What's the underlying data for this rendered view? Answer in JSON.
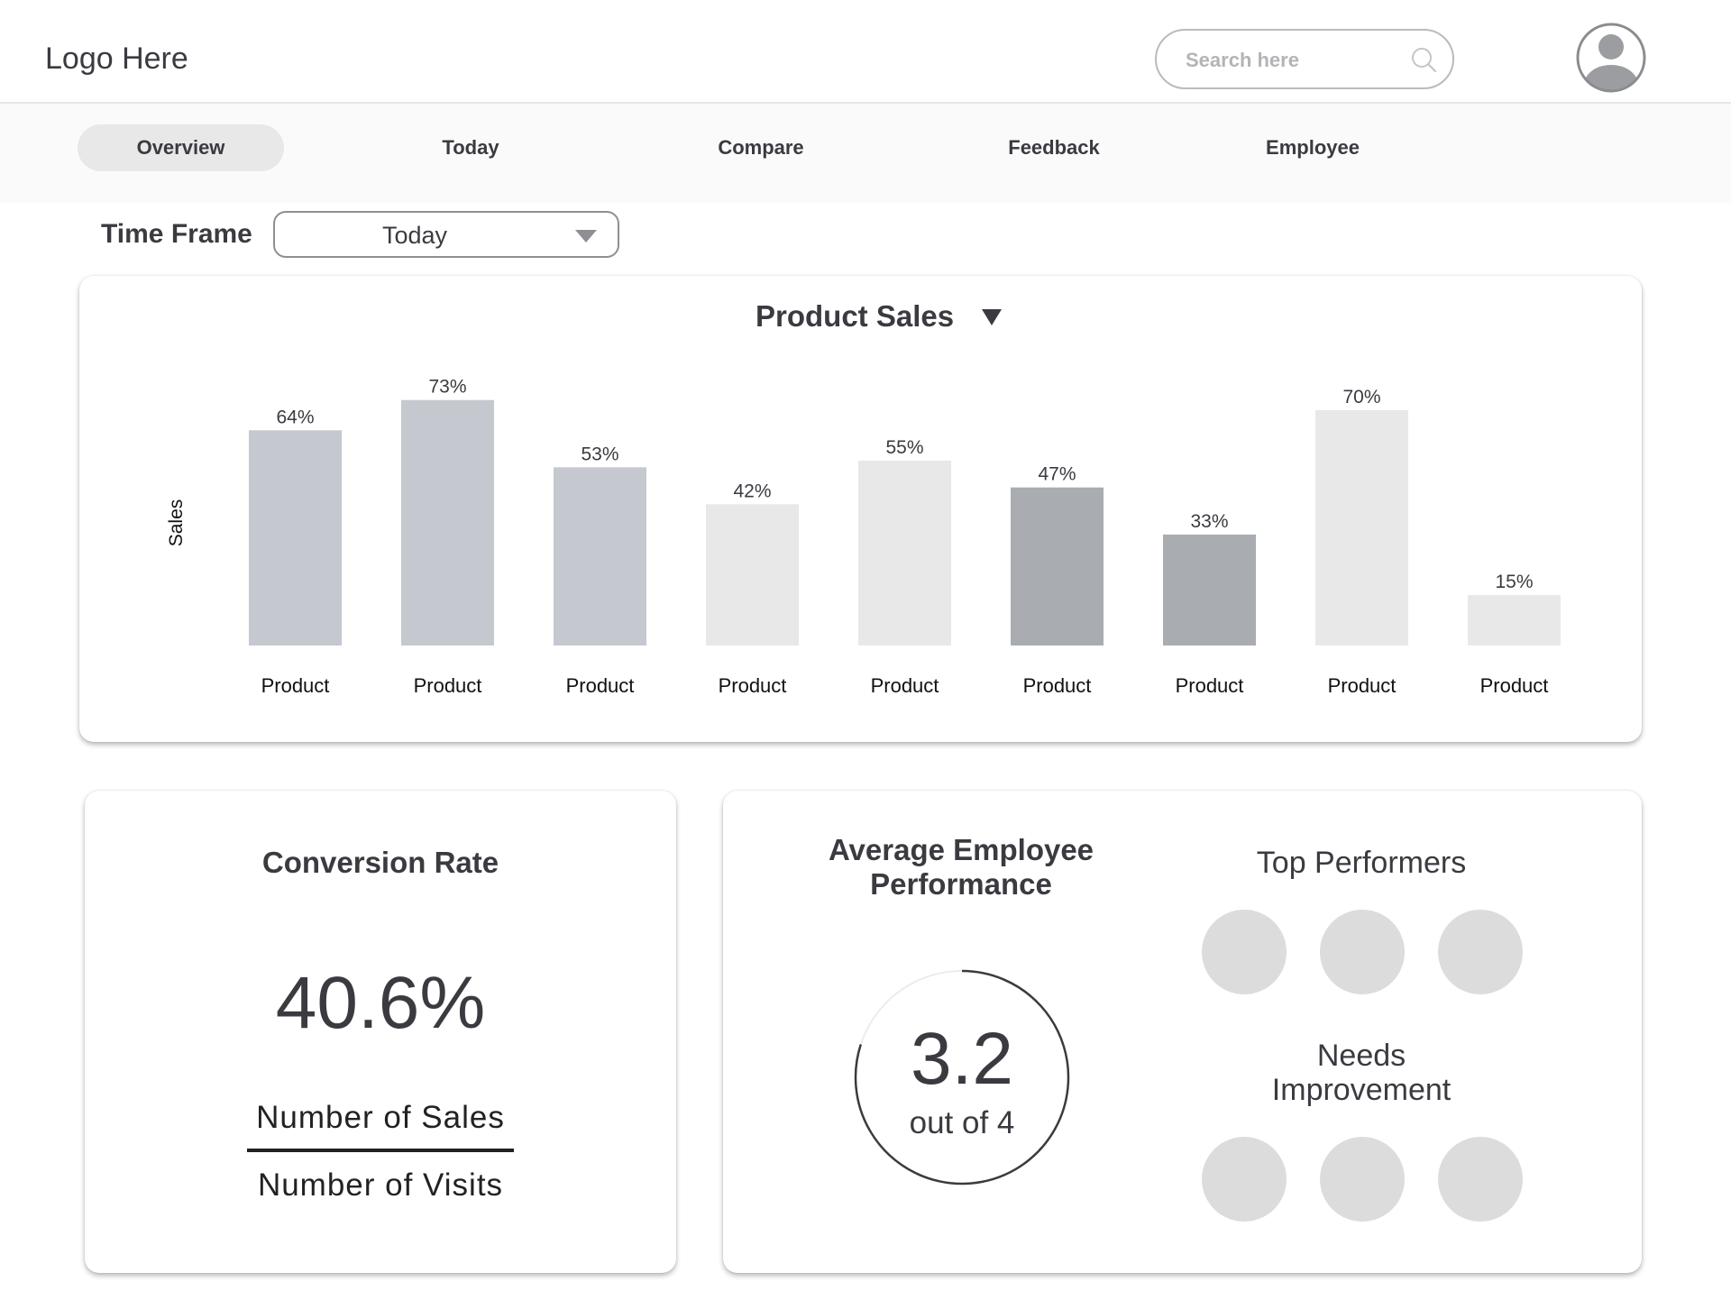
{
  "header": {
    "logo": "Logo Here",
    "search": {
      "placeholder": "Search here",
      "icon": "search-icon"
    },
    "avatar_icon": "user-avatar-icon"
  },
  "nav": {
    "tabs": [
      {
        "label": "Overview",
        "active": true
      },
      {
        "label": "Today",
        "active": false
      },
      {
        "label": "Compare",
        "active": false
      },
      {
        "label": "Feedback",
        "active": false
      },
      {
        "label": "Employee",
        "active": false
      }
    ]
  },
  "time_frame": {
    "label": "Time Frame",
    "value": "Today"
  },
  "chart_data": {
    "type": "bar",
    "title": "Product Sales",
    "ylabel": "Sales",
    "xlabel": "",
    "ylim": [
      0,
      100
    ],
    "grid": false,
    "legend": "none",
    "categories": [
      "Product",
      "Product",
      "Product",
      "Product",
      "Product",
      "Product",
      "Product",
      "Product",
      "Product"
    ],
    "values": [
      64,
      73,
      53,
      42,
      55,
      47,
      33,
      70,
      15
    ],
    "data_labels": [
      "64%",
      "73%",
      "53%",
      "42%",
      "55%",
      "47%",
      "33%",
      "70%",
      "15%"
    ],
    "colors": [
      "#c5c8ce",
      "#c5c8ce",
      "#c5c8ce",
      "#e8e8e9",
      "#e8e8e9",
      "#a9acb0",
      "#a9acb0",
      "#e8e8e9",
      "#e8e8e9"
    ]
  },
  "conversion": {
    "title": "Conversion Rate",
    "value": "40.6%",
    "numerator": "Number of Sales",
    "denominator": "Number of Visits"
  },
  "performance": {
    "title_line1": "Average Employee",
    "title_line2": "Performance",
    "score": "3.2",
    "unit": "out of 4",
    "score_value": 3.2,
    "score_max": 4,
    "top_title": "Top Performers",
    "needs_line1": "Needs",
    "needs_line2": "Improvement",
    "person_color": "#dcdcdd"
  }
}
